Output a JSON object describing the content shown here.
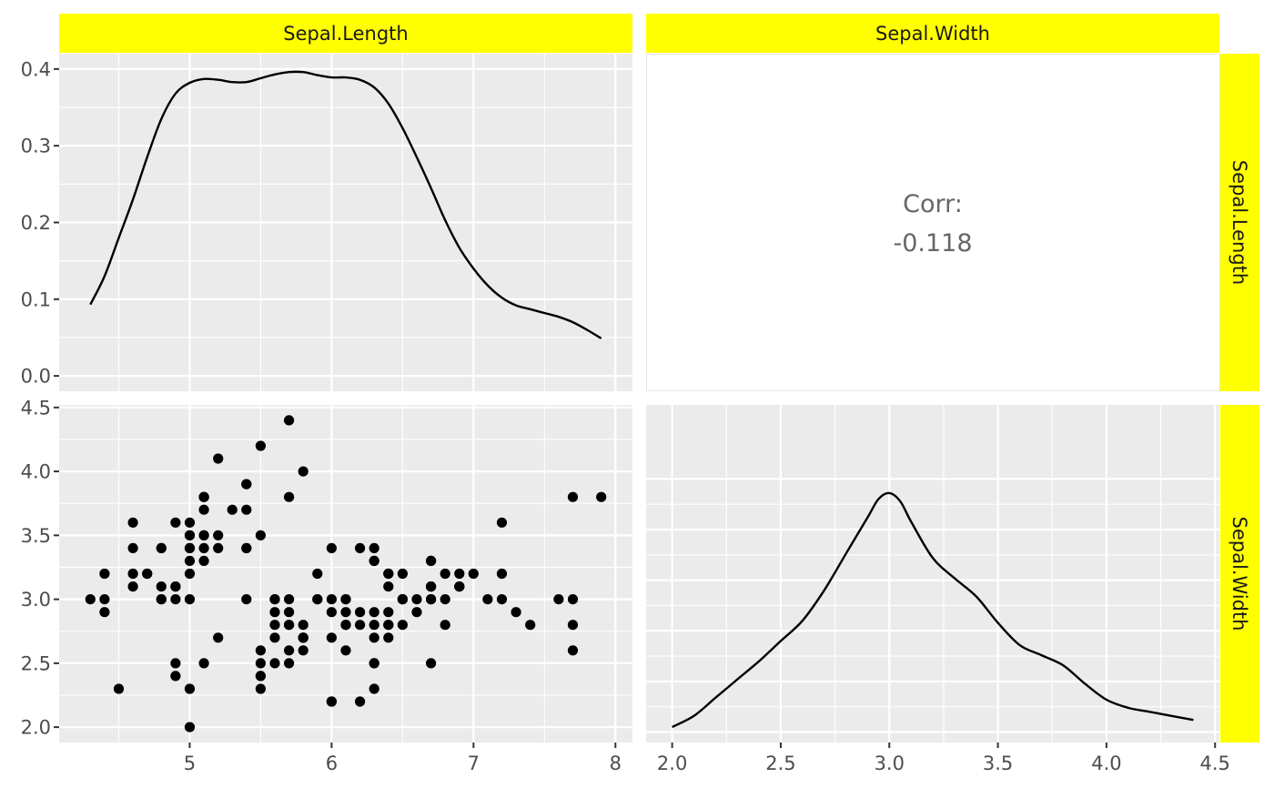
{
  "chart_data": {
    "type": "scatter-matrix",
    "strip_color": "#FFFF00",
    "panel_bg": "#EBEBEB",
    "columns": [
      "Sepal.Length",
      "Sepal.Width"
    ],
    "rows": [
      "Sepal.Length",
      "Sepal.Width"
    ],
    "axes": {
      "sepal_length": {
        "ticks": [
          "5",
          "6",
          "7",
          "8"
        ],
        "range": [
          4.08,
          8.12
        ]
      },
      "sepal_width": {
        "ticks": [
          "2.0",
          "2.5",
          "3.0",
          "3.5",
          "4.0",
          "4.5"
        ],
        "range": [
          1.88,
          4.52
        ]
      },
      "density_y": {
        "ticks": [
          "0.0",
          "0.1",
          "0.2",
          "0.3",
          "0.4"
        ],
        "range": [
          -0.02,
          0.42
        ]
      },
      "density_sw_range": [
        -0.05,
        1.25
      ]
    },
    "correlation": {
      "label": "Corr:",
      "value": "-0.118"
    },
    "density_sepal_length": [
      [
        4.3,
        0.093
      ],
      [
        4.4,
        0.13
      ],
      [
        4.5,
        0.18
      ],
      [
        4.6,
        0.23
      ],
      [
        4.7,
        0.285
      ],
      [
        4.8,
        0.335
      ],
      [
        4.9,
        0.368
      ],
      [
        5.0,
        0.382
      ],
      [
        5.1,
        0.387
      ],
      [
        5.2,
        0.386
      ],
      [
        5.3,
        0.383
      ],
      [
        5.4,
        0.383
      ],
      [
        5.5,
        0.388
      ],
      [
        5.6,
        0.393
      ],
      [
        5.7,
        0.396
      ],
      [
        5.8,
        0.396
      ],
      [
        5.9,
        0.392
      ],
      [
        6.0,
        0.389
      ],
      [
        6.1,
        0.389
      ],
      [
        6.2,
        0.386
      ],
      [
        6.3,
        0.376
      ],
      [
        6.4,
        0.355
      ],
      [
        6.5,
        0.323
      ],
      [
        6.6,
        0.285
      ],
      [
        6.7,
        0.245
      ],
      [
        6.8,
        0.203
      ],
      [
        6.9,
        0.167
      ],
      [
        7.0,
        0.14
      ],
      [
        7.1,
        0.118
      ],
      [
        7.2,
        0.102
      ],
      [
        7.3,
        0.092
      ],
      [
        7.4,
        0.087
      ],
      [
        7.5,
        0.082
      ],
      [
        7.6,
        0.077
      ],
      [
        7.7,
        0.07
      ],
      [
        7.8,
        0.06
      ],
      [
        7.9,
        0.049
      ]
    ],
    "density_sepal_width": [
      [
        2.0,
        0.025
      ],
      [
        2.1,
        0.08
      ],
      [
        2.2,
        0.17
      ],
      [
        2.3,
        0.26
      ],
      [
        2.4,
        0.35
      ],
      [
        2.5,
        0.45
      ],
      [
        2.6,
        0.55
      ],
      [
        2.7,
        0.7
      ],
      [
        2.8,
        0.88
      ],
      [
        2.9,
        1.06
      ],
      [
        2.95,
        1.15
      ],
      [
        3.0,
        1.18
      ],
      [
        3.05,
        1.14
      ],
      [
        3.1,
        1.04
      ],
      [
        3.2,
        0.86
      ],
      [
        3.3,
        0.76
      ],
      [
        3.4,
        0.67
      ],
      [
        3.5,
        0.54
      ],
      [
        3.6,
        0.43
      ],
      [
        3.7,
        0.38
      ],
      [
        3.8,
        0.33
      ],
      [
        3.9,
        0.24
      ],
      [
        4.0,
        0.16
      ],
      [
        4.1,
        0.12
      ],
      [
        4.2,
        0.1
      ],
      [
        4.3,
        0.08
      ],
      [
        4.4,
        0.06
      ]
    ],
    "scatter_points": [
      [
        5.1,
        3.5
      ],
      [
        4.9,
        3.0
      ],
      [
        4.7,
        3.2
      ],
      [
        4.6,
        3.1
      ],
      [
        5.0,
        3.6
      ],
      [
        5.4,
        3.9
      ],
      [
        4.6,
        3.4
      ],
      [
        5.0,
        3.4
      ],
      [
        4.4,
        2.9
      ],
      [
        4.9,
        3.1
      ],
      [
        5.4,
        3.7
      ],
      [
        4.8,
        3.4
      ],
      [
        4.8,
        3.0
      ],
      [
        4.3,
        3.0
      ],
      [
        5.8,
        4.0
      ],
      [
        5.7,
        4.4
      ],
      [
        5.4,
        3.9
      ],
      [
        5.1,
        3.5
      ],
      [
        5.7,
        3.8
      ],
      [
        5.1,
        3.8
      ],
      [
        5.4,
        3.4
      ],
      [
        5.1,
        3.7
      ],
      [
        4.6,
        3.6
      ],
      [
        5.1,
        3.3
      ],
      [
        4.8,
        3.4
      ],
      [
        5.0,
        3.0
      ],
      [
        5.0,
        3.4
      ],
      [
        5.2,
        3.5
      ],
      [
        5.2,
        3.4
      ],
      [
        4.7,
        3.2
      ],
      [
        4.8,
        3.1
      ],
      [
        5.4,
        3.4
      ],
      [
        5.2,
        4.1
      ],
      [
        5.5,
        4.2
      ],
      [
        4.9,
        3.1
      ],
      [
        5.0,
        3.2
      ],
      [
        5.5,
        3.5
      ],
      [
        4.9,
        3.6
      ],
      [
        4.4,
        3.0
      ],
      [
        5.1,
        3.4
      ],
      [
        5.0,
        3.5
      ],
      [
        4.5,
        2.3
      ],
      [
        4.4,
        3.2
      ],
      [
        5.0,
        3.5
      ],
      [
        5.1,
        3.8
      ],
      [
        4.8,
        3.0
      ],
      [
        5.1,
        3.8
      ],
      [
        4.6,
        3.2
      ],
      [
        5.3,
        3.7
      ],
      [
        5.0,
        3.3
      ],
      [
        7.0,
        3.2
      ],
      [
        6.4,
        3.2
      ],
      [
        6.9,
        3.1
      ],
      [
        5.5,
        2.3
      ],
      [
        6.5,
        2.8
      ],
      [
        5.7,
        2.8
      ],
      [
        6.3,
        3.3
      ],
      [
        4.9,
        2.4
      ],
      [
        6.6,
        2.9
      ],
      [
        5.2,
        2.7
      ],
      [
        5.0,
        2.0
      ],
      [
        5.9,
        3.0
      ],
      [
        6.0,
        2.2
      ],
      [
        6.1,
        2.9
      ],
      [
        5.6,
        2.9
      ],
      [
        6.7,
        3.1
      ],
      [
        5.6,
        3.0
      ],
      [
        5.8,
        2.7
      ],
      [
        6.2,
        2.2
      ],
      [
        5.6,
        2.5
      ],
      [
        5.9,
        3.2
      ],
      [
        6.1,
        2.8
      ],
      [
        6.3,
        2.5
      ],
      [
        6.1,
        2.8
      ],
      [
        6.4,
        2.9
      ],
      [
        6.6,
        3.0
      ],
      [
        6.8,
        2.8
      ],
      [
        6.7,
        3.0
      ],
      [
        6.0,
        2.9
      ],
      [
        5.7,
        2.6
      ],
      [
        5.5,
        2.4
      ],
      [
        5.5,
        2.4
      ],
      [
        5.8,
        2.7
      ],
      [
        6.0,
        2.7
      ],
      [
        5.4,
        3.0
      ],
      [
        6.0,
        3.4
      ],
      [
        6.7,
        3.1
      ],
      [
        6.3,
        2.3
      ],
      [
        5.6,
        3.0
      ],
      [
        5.5,
        2.5
      ],
      [
        5.5,
        2.6
      ],
      [
        6.1,
        3.0
      ],
      [
        5.8,
        2.6
      ],
      [
        5.0,
        2.3
      ],
      [
        5.6,
        2.7
      ],
      [
        5.7,
        3.0
      ],
      [
        5.7,
        2.9
      ],
      [
        6.2,
        2.9
      ],
      [
        5.1,
        2.5
      ],
      [
        5.7,
        2.8
      ],
      [
        6.3,
        3.3
      ],
      [
        5.8,
        2.7
      ],
      [
        7.1,
        3.0
      ],
      [
        6.3,
        2.9
      ],
      [
        6.5,
        3.0
      ],
      [
        7.6,
        3.0
      ],
      [
        4.9,
        2.5
      ],
      [
        7.3,
        2.9
      ],
      [
        6.7,
        2.5
      ],
      [
        7.2,
        3.6
      ],
      [
        6.5,
        3.2
      ],
      [
        6.4,
        2.7
      ],
      [
        6.8,
        3.0
      ],
      [
        5.7,
        2.5
      ],
      [
        5.8,
        2.8
      ],
      [
        6.4,
        3.2
      ],
      [
        6.5,
        3.0
      ],
      [
        7.7,
        3.8
      ],
      [
        7.7,
        2.6
      ],
      [
        6.0,
        2.2
      ],
      [
        6.9,
        3.2
      ],
      [
        5.6,
        2.8
      ],
      [
        7.7,
        2.8
      ],
      [
        6.3,
        2.7
      ],
      [
        6.7,
        3.3
      ],
      [
        7.2,
        3.2
      ],
      [
        6.2,
        2.8
      ],
      [
        6.1,
        3.0
      ],
      [
        6.4,
        2.8
      ],
      [
        7.2,
        3.0
      ],
      [
        7.4,
        2.8
      ],
      [
        7.9,
        3.8
      ],
      [
        6.4,
        2.8
      ],
      [
        6.3,
        2.8
      ],
      [
        6.1,
        2.6
      ],
      [
        7.7,
        3.0
      ],
      [
        6.3,
        3.4
      ],
      [
        6.4,
        3.1
      ],
      [
        6.0,
        3.0
      ],
      [
        6.9,
        3.1
      ],
      [
        6.7,
        3.1
      ],
      [
        6.9,
        3.1
      ],
      [
        5.8,
        2.7
      ],
      [
        6.8,
        3.2
      ],
      [
        6.7,
        3.3
      ],
      [
        6.7,
        3.0
      ],
      [
        6.3,
        2.5
      ],
      [
        6.5,
        3.0
      ],
      [
        6.2,
        3.4
      ],
      [
        5.9,
        3.0
      ]
    ]
  }
}
